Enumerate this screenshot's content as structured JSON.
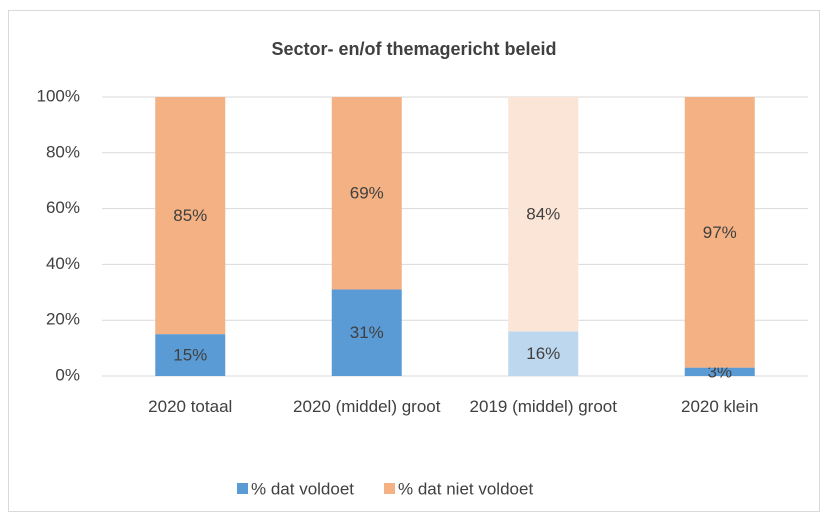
{
  "chart_data": {
    "type": "stacked_bar",
    "title": "Sector- en/of themagericht beleid",
    "categories": [
      "2020 totaal",
      "2020 (middel) groot",
      "2019 (middel) groot",
      "2020 klein"
    ],
    "series": [
      {
        "name": "% dat voldoet",
        "color": "#5b9bd5",
        "colors": [
          "#5b9bd5",
          "#5b9bd5",
          "#bdd7ee",
          "#5b9bd5"
        ],
        "values": [
          15,
          31,
          16,
          3
        ],
        "value_labels": [
          "15%",
          "31%",
          "16%",
          "3%"
        ]
      },
      {
        "name": "% dat niet voldoet",
        "color": "#f4b183",
        "colors": [
          "#f4b183",
          "#f4b183",
          "#fbe5d6",
          "#f4b183"
        ],
        "values": [
          85,
          69,
          84,
          97
        ],
        "value_labels": [
          "85%",
          "69%",
          "84%",
          "97%"
        ]
      }
    ],
    "ylim": [
      0,
      100
    ],
    "yticks": [
      {
        "value": 0,
        "label": "0%"
      },
      {
        "value": 20,
        "label": "20%"
      },
      {
        "value": 40,
        "label": "40%"
      },
      {
        "value": 60,
        "label": "60%"
      },
      {
        "value": 80,
        "label": "80%"
      },
      {
        "value": 100,
        "label": "100%"
      }
    ],
    "grid": true,
    "legend": "bottom"
  }
}
